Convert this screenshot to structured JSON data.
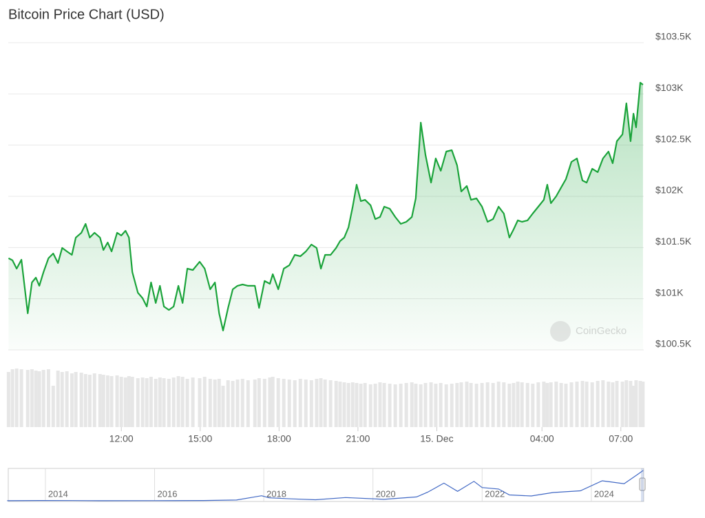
{
  "chart_data": [
    {
      "type": "area",
      "title": "Bitcoin Price Chart (USD)",
      "watermark": "CoinGecko",
      "color": "#1aa33a",
      "grid": true,
      "xlim": [
        7.7,
        31.87
      ],
      "xticks": [
        {
          "value": 12,
          "label": "12:00"
        },
        {
          "value": 15,
          "label": "15:00"
        },
        {
          "value": 18,
          "label": "18:00"
        },
        {
          "value": 21,
          "label": "21:00"
        },
        {
          "value": 24,
          "label": "15. Dec"
        },
        {
          "value": 28,
          "label": "04:00"
        },
        {
          "value": 31,
          "label": "07:00"
        }
      ],
      "ylim": [
        100500,
        103500
      ],
      "yticks": [
        {
          "value": 100500,
          "label": "$100.5K"
        },
        {
          "value": 101000,
          "label": "$101K"
        },
        {
          "value": 101500,
          "label": "$101.5K"
        },
        {
          "value": 102000,
          "label": "$102K"
        },
        {
          "value": 102500,
          "label": "$102.5K"
        },
        {
          "value": 103000,
          "label": "$103K"
        },
        {
          "value": 103500,
          "label": "$103.5K"
        }
      ],
      "x": [
        7.71,
        7.86,
        8.02,
        8.2,
        8.44,
        8.6,
        8.75,
        8.88,
        9.04,
        9.23,
        9.41,
        9.59,
        9.75,
        9.93,
        10.12,
        10.27,
        10.48,
        10.64,
        10.8,
        10.98,
        11.19,
        11.32,
        11.48,
        11.63,
        11.84,
        12,
        12.16,
        12.29,
        12.42,
        12.63,
        12.81,
        12.97,
        13.13,
        13.31,
        13.47,
        13.62,
        13.81,
        13.99,
        14.17,
        14.33,
        14.51,
        14.72,
        14.98,
        15.17,
        15.38,
        15.56,
        15.72,
        15.87,
        16.06,
        16.24,
        16.42,
        16.61,
        16.82,
        17.08,
        17.24,
        17.45,
        17.65,
        17.76,
        17.97,
        18.18,
        18.39,
        18.6,
        18.81,
        19.02,
        19.23,
        19.43,
        19.59,
        19.75,
        19.96,
        20.17,
        20.32,
        20.48,
        20.64,
        20.8,
        20.95,
        21.11,
        21.27,
        21.48,
        21.66,
        21.84,
        22,
        22.21,
        22.42,
        22.63,
        22.84,
        23.05,
        23.2,
        23.39,
        23.57,
        23.78,
        23.96,
        24.15,
        24.36,
        24.57,
        24.77,
        24.93,
        25.14,
        25.3,
        25.51,
        25.72,
        25.93,
        26.14,
        26.35,
        26.55,
        26.76,
        26.92,
        27.08,
        27.24,
        27.45,
        27.65,
        27.86,
        28.07,
        28.2,
        28.34,
        28.54,
        28.73,
        28.91,
        29.12,
        29.33,
        29.54,
        29.7,
        29.91,
        30.12,
        30.32,
        30.53,
        30.69,
        30.85,
        31.06,
        31.21,
        31.37,
        31.48,
        31.58,
        31.74,
        31.84
      ],
      "values": [
        101395,
        101375,
        101294,
        101381,
        100857,
        101159,
        101206,
        101126,
        101260,
        101395,
        101442,
        101348,
        101496,
        101462,
        101428,
        101597,
        101644,
        101731,
        101597,
        101644,
        101597,
        101475,
        101549,
        101462,
        101644,
        101617,
        101664,
        101597,
        101260,
        101058,
        101005,
        100924,
        101159,
        100958,
        101126,
        100924,
        100890,
        100924,
        101126,
        100958,
        101294,
        101280,
        101361,
        101294,
        101092,
        101159,
        100857,
        100689,
        100910,
        101092,
        101126,
        101139,
        101126,
        101126,
        100910,
        101173,
        101146,
        101240,
        101092,
        101294,
        101327,
        101428,
        101415,
        101462,
        101529,
        101496,
        101294,
        101428,
        101428,
        101496,
        101563,
        101597,
        101697,
        101899,
        102114,
        101953,
        101966,
        101913,
        101778,
        101798,
        101899,
        101879,
        101798,
        101731,
        101751,
        101798,
        101980,
        102720,
        102404,
        102134,
        102370,
        102249,
        102437,
        102451,
        102303,
        102047,
        102101,
        101966,
        101980,
        101899,
        101751,
        101778,
        101899,
        101832,
        101597,
        101677,
        101765,
        101751,
        101765,
        101832,
        101899,
        101966,
        102114,
        101933,
        102000,
        102087,
        102168,
        102336,
        102370,
        102155,
        102134,
        102269,
        102236,
        102370,
        102437,
        102323,
        102538,
        102605,
        102908,
        102538,
        102807,
        102673,
        103110,
        103090
      ],
      "volume_color": "#e6e6e6",
      "volume": [
        80,
        84,
        85,
        84,
        83,
        84,
        82,
        81,
        83,
        84,
        60,
        82,
        80,
        81,
        78,
        80,
        79,
        77,
        76,
        78,
        77,
        76,
        75,
        74,
        75,
        73,
        72,
        74,
        73,
        71,
        72,
        71,
        73,
        70,
        72,
        71,
        70,
        72,
        74,
        73,
        70,
        72,
        71,
        73,
        70,
        69,
        70,
        60,
        68,
        67,
        69,
        70,
        68,
        69,
        71,
        70,
        72,
        73,
        71,
        70,
        69,
        68,
        70,
        69,
        68,
        70,
        71,
        69,
        68,
        67,
        66,
        65,
        64,
        65,
        64,
        63,
        64,
        62,
        63,
        65,
        64,
        63,
        62,
        63,
        64,
        65,
        63,
        62,
        64,
        65,
        63,
        64,
        62,
        63,
        64,
        65,
        66,
        64,
        63,
        64,
        65,
        64,
        66,
        65,
        63,
        64,
        66,
        65,
        64,
        63,
        65,
        66,
        64,
        65,
        66,
        64,
        63,
        65,
        66,
        67,
        66,
        65,
        67,
        68,
        66,
        65,
        67,
        66,
        68,
        67,
        60,
        68,
        67,
        66
      ]
    },
    {
      "type": "line",
      "color": "#3f67c4",
      "xlim": [
        2013.32,
        2024.96
      ],
      "xticks": [
        2014,
        2016,
        2018,
        2020,
        2022,
        2024
      ],
      "x": [
        2013.3,
        2013.9,
        2014.5,
        2015,
        2016,
        2016.9,
        2017.5,
        2017.96,
        2018.1,
        2018.5,
        2018.95,
        2019.5,
        2020.2,
        2020.8,
        2021,
        2021.3,
        2021.55,
        2021.85,
        2022,
        2022.3,
        2022.5,
        2022.9,
        2023.3,
        2023.8,
        2024.2,
        2024.6,
        2024.85,
        2024.95
      ],
      "values": [
        120,
        1000,
        600,
        250,
        430,
        900,
        2500,
        17000,
        10000,
        6500,
        3500,
        11000,
        5000,
        13000,
        29000,
        60000,
        32000,
        66000,
        45000,
        40000,
        20000,
        16500,
        28000,
        34000,
        68000,
        58000,
        90000,
        103000
      ]
    }
  ]
}
